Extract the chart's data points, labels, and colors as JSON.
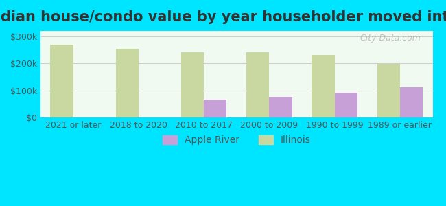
{
  "title": "Median house/condo value by year householder moved into unit",
  "categories": [
    "2021 or later",
    "2018 to 2020",
    "2010 to 2017",
    "2000 to 2009",
    "1990 to 1999",
    "1989 or earlier"
  ],
  "apple_river": [
    null,
    null,
    65000,
    75000,
    90000,
    112000
  ],
  "illinois": [
    268000,
    253000,
    242000,
    240000,
    232000,
    198000
  ],
  "apple_river_color": "#c8a0d8",
  "illinois_color": "#c8d8a0",
  "background_outer": "#00e5ff",
  "background_inner": "#f0faf0",
  "ylim": [
    0,
    320000
  ],
  "yticks": [
    0,
    100000,
    200000,
    300000
  ],
  "ytick_labels": [
    "$0",
    "$100k",
    "$200k",
    "$300k"
  ],
  "bar_width": 0.35,
  "legend_apple": "Apple River",
  "legend_illinois": "Illinois",
  "watermark": "City-Data.com",
  "title_fontsize": 15,
  "tick_fontsize": 9,
  "legend_fontsize": 10
}
